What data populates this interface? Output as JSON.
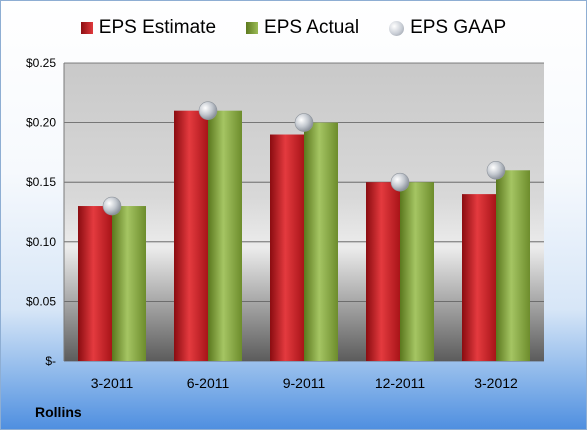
{
  "legend": {
    "estimate": "EPS Estimate",
    "actual": "EPS Actual",
    "gaap": "EPS GAAP"
  },
  "company": "Rollins",
  "colors": {
    "estimate": "#c8181e",
    "actual": "#8aab45",
    "gaap": "#c0c6ce"
  },
  "chart_data": {
    "type": "bar",
    "categories": [
      "3-2011",
      "6-2011",
      "9-2011",
      "12-2011",
      "3-2012"
    ],
    "series": [
      {
        "name": "EPS Estimate",
        "values": [
          0.13,
          0.21,
          0.19,
          0.15,
          0.14
        ]
      },
      {
        "name": "EPS Actual",
        "values": [
          0.13,
          0.21,
          0.2,
          0.15,
          0.16
        ]
      },
      {
        "name": "EPS GAAP",
        "values": [
          0.13,
          0.21,
          0.2,
          0.15,
          0.16
        ]
      }
    ],
    "yticks": [
      "$-",
      "$0.05",
      "$0.10",
      "$0.15",
      "$0.20",
      "$0.25"
    ],
    "ylim": [
      0,
      0.25
    ],
    "grid": true,
    "legend_position": "top"
  }
}
